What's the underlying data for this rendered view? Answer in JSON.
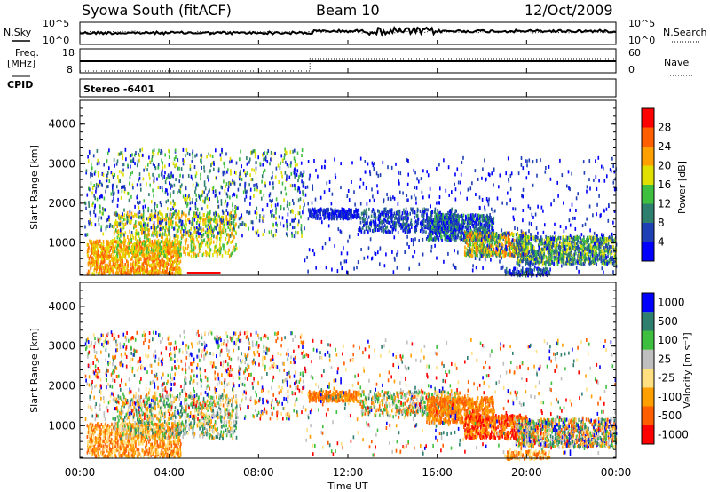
{
  "header": {
    "station": "Syowa South (fitACF)",
    "beam": "Beam 10",
    "date": "12/Oct/2009"
  },
  "strip": {
    "nsky_label": "N.Sky",
    "nsearch_label": "N.Search",
    "noise_tick_top": "10^5",
    "noise_tick_bottom": "10^0",
    "freq_label": "Freq.",
    "freq_unit": "[MHz]",
    "freq_ticks": [
      "18",
      "8"
    ],
    "nave_label": "Nave",
    "nave_ticks": [
      "60",
      "0"
    ],
    "cpid_label": "CPID",
    "cpid_value": "Stereo -6401"
  },
  "colors": {
    "power_scale": [
      "#0000ff",
      "#1f3fb4",
      "#2f7f6f",
      "#3fbf3f",
      "#dfdf00",
      "#ff9f00",
      "#ff5f00",
      "#ff0000"
    ],
    "velocity_scale": [
      "#ff0000",
      "#ff5f00",
      "#ff9f00",
      "#ffdf7f",
      "#bfbfbf",
      "#3fbf3f",
      "#2f7f6f",
      "#0000ff"
    ]
  },
  "chart_data": [
    {
      "type": "heatmap",
      "title": "Power",
      "ylabel": "Slant Range [km]",
      "xlabel": "Time UT",
      "x_ticks": [
        "00:00",
        "04:00",
        "08:00",
        "12:00",
        "16:00",
        "20:00",
        "00:00"
      ],
      "y_ticks": [
        "1000",
        "2000",
        "3000",
        "4000"
      ],
      "ylim": [
        180,
        4600
      ],
      "xlim_hours": [
        0,
        24
      ],
      "colorbar_label": "Power [dB]",
      "colorbar_ticks": [
        "4",
        "8",
        "12",
        "16",
        "20",
        "24",
        "28"
      ],
      "colorbar_range": [
        0,
        30
      ]
    },
    {
      "type": "heatmap",
      "title": "Velocity",
      "ylabel": "Slant Range [km]",
      "xlabel": "Time UT",
      "x_ticks": [
        "00:00",
        "04:00",
        "08:00",
        "12:00",
        "16:00",
        "20:00",
        "00:00"
      ],
      "y_ticks": [
        "1000",
        "2000",
        "3000",
        "4000"
      ],
      "ylim": [
        180,
        4600
      ],
      "xlim_hours": [
        0,
        24
      ],
      "colorbar_label": "Velocity [m s⁻¹]",
      "colorbar_ticks": [
        "1000",
        "500",
        "100",
        "25",
        "-25",
        "-100",
        "-500",
        "-1000"
      ],
      "colorbar_range": [
        -1000,
        1000
      ]
    }
  ]
}
